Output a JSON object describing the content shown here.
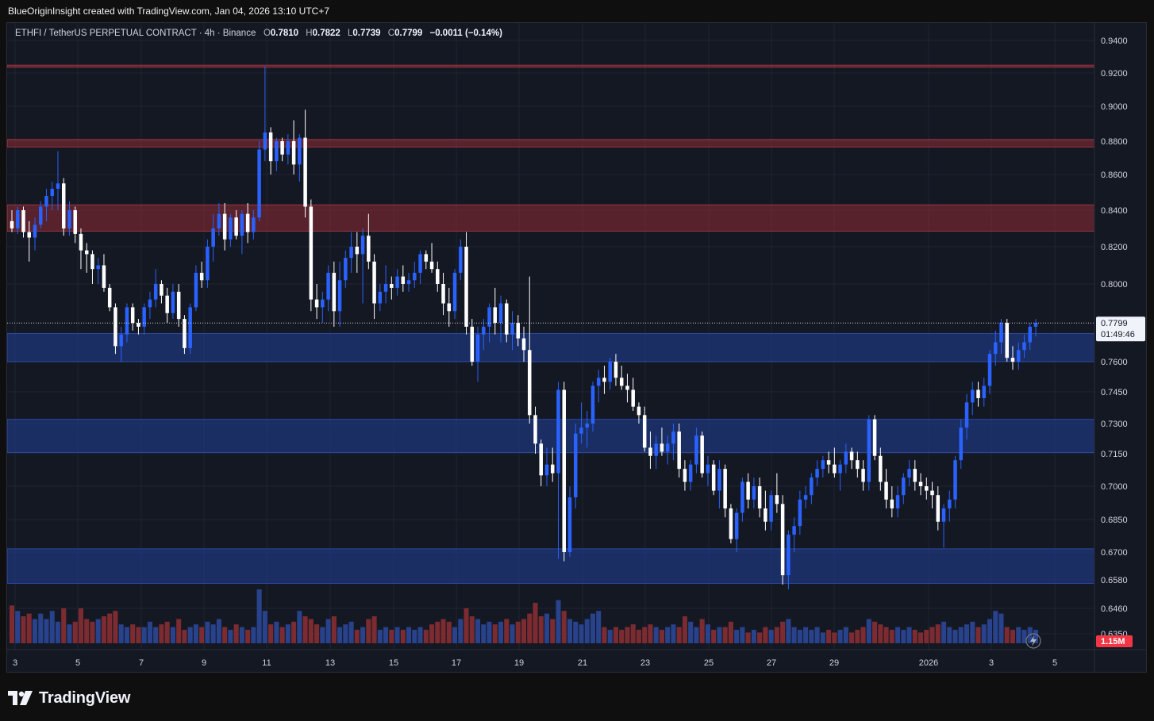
{
  "caption": "BlueOriginInsight created with TradingView.com, Jan 04, 2026 13:10 UTC+7",
  "legend": {
    "symbol": "ETHFI / TetherUS PERPETUAL CONTRACT · 4h · Binance",
    "open_label": "O",
    "open": "0.7810",
    "high_label": "H",
    "high": "0.7822",
    "low_label": "L",
    "low": "0.7739",
    "close_label": "C",
    "close": "0.7799",
    "change": "−0.0011 (−0.14%)"
  },
  "price_tag": {
    "price": "0.7799",
    "countdown": "01:49:46"
  },
  "volume_tag": "1.15M",
  "brand": {
    "name": "TradingView",
    "icon": "tradingview-logo-icon"
  },
  "icons": {
    "replay": "lightning-icon"
  },
  "colors": {
    "up": "#2962ff",
    "down": "#ffffff",
    "vol_up": "#2b4a9e",
    "vol_down": "#8e2f33",
    "supply_zone": "#8e2b35",
    "demand_zone": "#1e3e8f",
    "tag_red": "#f23645"
  },
  "chart_data": {
    "type": "candlestick",
    "timeframe": "4h",
    "y_axis": {
      "ticks": [
        "0.9400",
        "0.9200",
        "0.9000",
        "0.8800",
        "0.8600",
        "0.8400",
        "0.8200",
        "0.8000",
        "0.7600",
        "0.7450",
        "0.7300",
        "0.7150",
        "0.7000",
        "0.6850",
        "0.6700",
        "0.6580",
        "0.6460",
        "0.6350"
      ],
      "range": [
        0.6325,
        0.9455
      ]
    },
    "x_axis": {
      "ticks": [
        "3",
        "5",
        "7",
        "9",
        "11",
        "13",
        "15",
        "17",
        "19",
        "21",
        "23",
        "25",
        "27",
        "29",
        "2026",
        "3",
        "5"
      ]
    },
    "zones": [
      {
        "kind": "supply",
        "low": 0.9235,
        "high": 0.9248
      },
      {
        "kind": "supply",
        "low": 0.8765,
        "high": 0.881
      },
      {
        "kind": "supply",
        "low": 0.8285,
        "high": 0.843
      },
      {
        "kind": "demand",
        "low": 0.76,
        "high": 0.7745
      },
      {
        "kind": "demand",
        "low": 0.7156,
        "high": 0.732
      },
      {
        "kind": "demand",
        "low": 0.6565,
        "high": 0.6715
      }
    ],
    "candles": [
      [
        0.834,
        0.84,
        0.828,
        0.83,
        1.4
      ],
      [
        0.83,
        0.842,
        0.827,
        0.84,
        1.2
      ],
      [
        0.84,
        0.842,
        0.825,
        0.828,
        1.0
      ],
      [
        0.828,
        0.834,
        0.812,
        0.825,
        1.1
      ],
      [
        0.825,
        0.836,
        0.818,
        0.832,
        0.9
      ],
      [
        0.832,
        0.845,
        0.83,
        0.842,
        1.1
      ],
      [
        0.842,
        0.852,
        0.834,
        0.848,
        0.9
      ],
      [
        0.848,
        0.856,
        0.84,
        0.852,
        1.2
      ],
      [
        0.852,
        0.874,
        0.84,
        0.855,
        0.8
      ],
      [
        0.855,
        0.858,
        0.826,
        0.83,
        1.3
      ],
      [
        0.83,
        0.845,
        0.826,
        0.84,
        0.7
      ],
      [
        0.84,
        0.842,
        0.822,
        0.827,
        0.8
      ],
      [
        0.827,
        0.83,
        0.808,
        0.818,
        1.3
      ],
      [
        0.818,
        0.822,
        0.806,
        0.816,
        0.9
      ],
      [
        0.816,
        0.818,
        0.8,
        0.808,
        0.8
      ],
      [
        0.808,
        0.814,
        0.8,
        0.81,
        0.9
      ],
      [
        0.81,
        0.816,
        0.796,
        0.798,
        1.0
      ],
      [
        0.798,
        0.8,
        0.786,
        0.788,
        1.1
      ],
      [
        0.788,
        0.79,
        0.764,
        0.768,
        1.2
      ],
      [
        0.768,
        0.778,
        0.76,
        0.774,
        0.7
      ],
      [
        0.774,
        0.79,
        0.77,
        0.788,
        0.6
      ],
      [
        0.788,
        0.79,
        0.776,
        0.78,
        0.7
      ],
      [
        0.78,
        0.782,
        0.774,
        0.778,
        0.6
      ],
      [
        0.778,
        0.79,
        0.774,
        0.788,
        0.6
      ],
      [
        0.788,
        0.796,
        0.782,
        0.792,
        0.8
      ],
      [
        0.792,
        0.808,
        0.788,
        0.8,
        0.6
      ],
      [
        0.8,
        0.802,
        0.79,
        0.794,
        0.7
      ],
      [
        0.794,
        0.798,
        0.78,
        0.785,
        0.8
      ],
      [
        0.785,
        0.8,
        0.782,
        0.796,
        0.6
      ],
      [
        0.796,
        0.8,
        0.778,
        0.782,
        0.9
      ],
      [
        0.782,
        0.784,
        0.764,
        0.767,
        0.5
      ],
      [
        0.767,
        0.79,
        0.764,
        0.788,
        0.6
      ],
      [
        0.788,
        0.81,
        0.786,
        0.806,
        0.7
      ],
      [
        0.806,
        0.812,
        0.798,
        0.802,
        0.6
      ],
      [
        0.802,
        0.824,
        0.798,
        0.82,
        0.8
      ],
      [
        0.82,
        0.838,
        0.812,
        0.83,
        0.7
      ],
      [
        0.83,
        0.844,
        0.826,
        0.838,
        0.9
      ],
      [
        0.838,
        0.844,
        0.818,
        0.824,
        0.6
      ],
      [
        0.824,
        0.838,
        0.82,
        0.836,
        0.5
      ],
      [
        0.836,
        0.84,
        0.824,
        0.826,
        0.7
      ],
      [
        0.826,
        0.84,
        0.816,
        0.838,
        0.6
      ],
      [
        0.838,
        0.844,
        0.822,
        0.828,
        0.5
      ],
      [
        0.828,
        0.84,
        0.824,
        0.836,
        0.6
      ],
      [
        0.836,
        0.88,
        0.834,
        0.875,
        2.0
      ],
      [
        0.875,
        0.924,
        0.868,
        0.885,
        1.2
      ],
      [
        0.885,
        0.888,
        0.86,
        0.868,
        0.7
      ],
      [
        0.868,
        0.882,
        0.862,
        0.88,
        0.8
      ],
      [
        0.88,
        0.882,
        0.868,
        0.872,
        0.6
      ],
      [
        0.872,
        0.884,
        0.866,
        0.88,
        0.7
      ],
      [
        0.88,
        0.892,
        0.86,
        0.866,
        0.8
      ],
      [
        0.866,
        0.884,
        0.856,
        0.882,
        1.2
      ],
      [
        0.882,
        0.898,
        0.836,
        0.842,
        1.0
      ],
      [
        0.842,
        0.846,
        0.786,
        0.792,
        0.9
      ],
      [
        0.792,
        0.8,
        0.782,
        0.788,
        0.7
      ],
      [
        0.788,
        0.796,
        0.78,
        0.792,
        0.6
      ],
      [
        0.792,
        0.81,
        0.786,
        0.806,
        0.9
      ],
      [
        0.806,
        0.812,
        0.778,
        0.786,
        1.0
      ],
      [
        0.786,
        0.812,
        0.778,
        0.802,
        0.6
      ],
      [
        0.802,
        0.818,
        0.798,
        0.814,
        0.7
      ],
      [
        0.814,
        0.828,
        0.806,
        0.82,
        0.8
      ],
      [
        0.82,
        0.828,
        0.806,
        0.816,
        0.5
      ],
      [
        0.816,
        0.83,
        0.79,
        0.826,
        0.6
      ],
      [
        0.826,
        0.838,
        0.808,
        0.812,
        0.9
      ],
      [
        0.812,
        0.816,
        0.782,
        0.79,
        1.0
      ],
      [
        0.79,
        0.8,
        0.786,
        0.796,
        0.5
      ],
      [
        0.796,
        0.81,
        0.79,
        0.8,
        0.6
      ],
      [
        0.8,
        0.804,
        0.792,
        0.798,
        0.5
      ],
      [
        0.798,
        0.808,
        0.794,
        0.804,
        0.6
      ],
      [
        0.804,
        0.81,
        0.796,
        0.8,
        0.5
      ],
      [
        0.8,
        0.806,
        0.796,
        0.802,
        0.6
      ],
      [
        0.802,
        0.812,
        0.798,
        0.806,
        0.5
      ],
      [
        0.806,
        0.818,
        0.8,
        0.816,
        0.6
      ],
      [
        0.816,
        0.818,
        0.808,
        0.812,
        0.5
      ],
      [
        0.812,
        0.822,
        0.806,
        0.808,
        0.7
      ],
      [
        0.808,
        0.812,
        0.796,
        0.8,
        0.8
      ],
      [
        0.8,
        0.806,
        0.784,
        0.79,
        0.9
      ],
      [
        0.79,
        0.798,
        0.778,
        0.786,
        0.8
      ],
      [
        0.786,
        0.808,
        0.782,
        0.806,
        0.6
      ],
      [
        0.806,
        0.824,
        0.802,
        0.82,
        0.9
      ],
      [
        0.82,
        0.828,
        0.774,
        0.778,
        1.3
      ],
      [
        0.778,
        0.782,
        0.758,
        0.76,
        1.0
      ],
      [
        0.76,
        0.778,
        0.75,
        0.774,
        0.9
      ],
      [
        0.774,
        0.782,
        0.766,
        0.778,
        0.7
      ],
      [
        0.778,
        0.79,
        0.77,
        0.788,
        0.8
      ],
      [
        0.788,
        0.798,
        0.774,
        0.78,
        0.7
      ],
      [
        0.78,
        0.794,
        0.77,
        0.79,
        0.8
      ],
      [
        0.79,
        0.792,
        0.77,
        0.774,
        0.9
      ],
      [
        0.774,
        0.786,
        0.766,
        0.78,
        0.7
      ],
      [
        0.78,
        0.784,
        0.768,
        0.772,
        0.8
      ],
      [
        0.772,
        0.778,
        0.76,
        0.766,
        0.9
      ],
      [
        0.766,
        0.804,
        0.73,
        0.734,
        1.1
      ],
      [
        0.734,
        0.738,
        0.715,
        0.72,
        1.5
      ],
      [
        0.72,
        0.722,
        0.7,
        0.705,
        1.0
      ],
      [
        0.705,
        0.718,
        0.7,
        0.71,
        1.1
      ],
      [
        0.71,
        0.718,
        0.702,
        0.706,
        0.9
      ],
      [
        0.706,
        0.75,
        0.667,
        0.746,
        1.6
      ],
      [
        0.746,
        0.75,
        0.666,
        0.67,
        1.2
      ],
      [
        0.67,
        0.7,
        0.668,
        0.695,
        0.9
      ],
      [
        0.695,
        0.73,
        0.69,
        0.725,
        0.8
      ],
      [
        0.725,
        0.74,
        0.72,
        0.728,
        0.7
      ],
      [
        0.728,
        0.736,
        0.718,
        0.73,
        0.9
      ],
      [
        0.73,
        0.75,
        0.726,
        0.748,
        1.1
      ],
      [
        0.748,
        0.756,
        0.74,
        0.752,
        1.2
      ],
      [
        0.752,
        0.758,
        0.744,
        0.75,
        0.6
      ],
      [
        0.75,
        0.762,
        0.746,
        0.76,
        0.5
      ],
      [
        0.76,
        0.764,
        0.748,
        0.752,
        0.6
      ],
      [
        0.752,
        0.758,
        0.746,
        0.748,
        0.5
      ],
      [
        0.748,
        0.754,
        0.74,
        0.746,
        0.6
      ],
      [
        0.746,
        0.752,
        0.736,
        0.738,
        0.7
      ],
      [
        0.738,
        0.74,
        0.73,
        0.734,
        0.5
      ],
      [
        0.734,
        0.738,
        0.716,
        0.718,
        0.6
      ],
      [
        0.718,
        0.726,
        0.708,
        0.714,
        0.7
      ],
      [
        0.714,
        0.724,
        0.708,
        0.72,
        0.6
      ],
      [
        0.72,
        0.728,
        0.714,
        0.716,
        0.5
      ],
      [
        0.716,
        0.724,
        0.71,
        0.72,
        0.6
      ],
      [
        0.72,
        0.73,
        0.712,
        0.726,
        0.7
      ],
      [
        0.726,
        0.73,
        0.704,
        0.708,
        0.6
      ],
      [
        0.708,
        0.712,
        0.698,
        0.702,
        1.0
      ],
      [
        0.702,
        0.712,
        0.698,
        0.71,
        0.8
      ],
      [
        0.71,
        0.728,
        0.706,
        0.724,
        0.6
      ],
      [
        0.724,
        0.726,
        0.704,
        0.706,
        0.9
      ],
      [
        0.706,
        0.714,
        0.7,
        0.71,
        0.7
      ],
      [
        0.71,
        0.712,
        0.696,
        0.698,
        0.5
      ],
      [
        0.698,
        0.712,
        0.69,
        0.708,
        0.6
      ],
      [
        0.708,
        0.71,
        0.686,
        0.69,
        0.6
      ],
      [
        0.69,
        0.692,
        0.674,
        0.676,
        0.8
      ],
      [
        0.676,
        0.69,
        0.67,
        0.688,
        0.5
      ],
      [
        0.688,
        0.704,
        0.684,
        0.702,
        0.6
      ],
      [
        0.702,
        0.706,
        0.69,
        0.694,
        0.4
      ],
      [
        0.694,
        0.704,
        0.69,
        0.7,
        0.5
      ],
      [
        0.7,
        0.704,
        0.686,
        0.69,
        0.4
      ],
      [
        0.69,
        0.698,
        0.68,
        0.684,
        0.6
      ],
      [
        0.684,
        0.698,
        0.68,
        0.696,
        0.5
      ],
      [
        0.696,
        0.706,
        0.688,
        0.692,
        0.6
      ],
      [
        0.692,
        0.696,
        0.656,
        0.66,
        0.8
      ],
      [
        0.66,
        0.68,
        0.654,
        0.678,
        0.9
      ],
      [
        0.678,
        0.686,
        0.67,
        0.682,
        0.6
      ],
      [
        0.682,
        0.698,
        0.678,
        0.694,
        0.5
      ],
      [
        0.694,
        0.7,
        0.69,
        0.696,
        0.6
      ],
      [
        0.696,
        0.706,
        0.692,
        0.704,
        0.5
      ],
      [
        0.704,
        0.712,
        0.7,
        0.708,
        0.6
      ],
      [
        0.708,
        0.714,
        0.704,
        0.712,
        0.4
      ],
      [
        0.712,
        0.716,
        0.706,
        0.71,
        0.5
      ],
      [
        0.71,
        0.718,
        0.704,
        0.706,
        0.4
      ],
      [
        0.706,
        0.712,
        0.698,
        0.71,
        0.5
      ],
      [
        0.71,
        0.72,
        0.706,
        0.716,
        0.6
      ],
      [
        0.716,
        0.718,
        0.708,
        0.712,
        0.4
      ],
      [
        0.712,
        0.716,
        0.704,
        0.708,
        0.5
      ],
      [
        0.708,
        0.712,
        0.698,
        0.702,
        0.6
      ],
      [
        0.702,
        0.734,
        0.698,
        0.732,
        0.9
      ],
      [
        0.732,
        0.734,
        0.712,
        0.714,
        0.8
      ],
      [
        0.714,
        0.718,
        0.698,
        0.702,
        0.7
      ],
      [
        0.702,
        0.708,
        0.69,
        0.694,
        0.6
      ],
      [
        0.694,
        0.7,
        0.686,
        0.69,
        0.5
      ],
      [
        0.69,
        0.7,
        0.686,
        0.696,
        0.6
      ],
      [
        0.696,
        0.706,
        0.692,
        0.704,
        0.5
      ],
      [
        0.704,
        0.712,
        0.7,
        0.708,
        0.6
      ],
      [
        0.708,
        0.712,
        0.698,
        0.702,
        0.5
      ],
      [
        0.702,
        0.706,
        0.696,
        0.7,
        0.4
      ],
      [
        0.7,
        0.704,
        0.694,
        0.698,
        0.5
      ],
      [
        0.698,
        0.702,
        0.69,
        0.696,
        0.6
      ],
      [
        0.696,
        0.7,
        0.68,
        0.684,
        0.7
      ],
      [
        0.684,
        0.692,
        0.672,
        0.69,
        0.8
      ],
      [
        0.69,
        0.698,
        0.684,
        0.694,
        0.6
      ],
      [
        0.694,
        0.714,
        0.69,
        0.712,
        0.5
      ],
      [
        0.712,
        0.732,
        0.708,
        0.728,
        0.6
      ],
      [
        0.728,
        0.744,
        0.722,
        0.74,
        0.7
      ],
      [
        0.74,
        0.75,
        0.734,
        0.746,
        0.8
      ],
      [
        0.746,
        0.75,
        0.738,
        0.742,
        0.6
      ],
      [
        0.742,
        0.752,
        0.738,
        0.748,
        0.7
      ],
      [
        0.748,
        0.766,
        0.744,
        0.764,
        0.9
      ],
      [
        0.764,
        0.776,
        0.758,
        0.77,
        1.2
      ],
      [
        0.77,
        0.782,
        0.764,
        0.78,
        1.1
      ],
      [
        0.78,
        0.782,
        0.76,
        0.762,
        0.6
      ],
      [
        0.762,
        0.768,
        0.756,
        0.76,
        0.5
      ],
      [
        0.76,
        0.77,
        0.756,
        0.766,
        0.6
      ],
      [
        0.766,
        0.774,
        0.762,
        0.77,
        0.5
      ],
      [
        0.77,
        0.78,
        0.766,
        0.778,
        0.6
      ],
      [
        0.778,
        0.782,
        0.773,
        0.78,
        0.5
      ]
    ]
  }
}
